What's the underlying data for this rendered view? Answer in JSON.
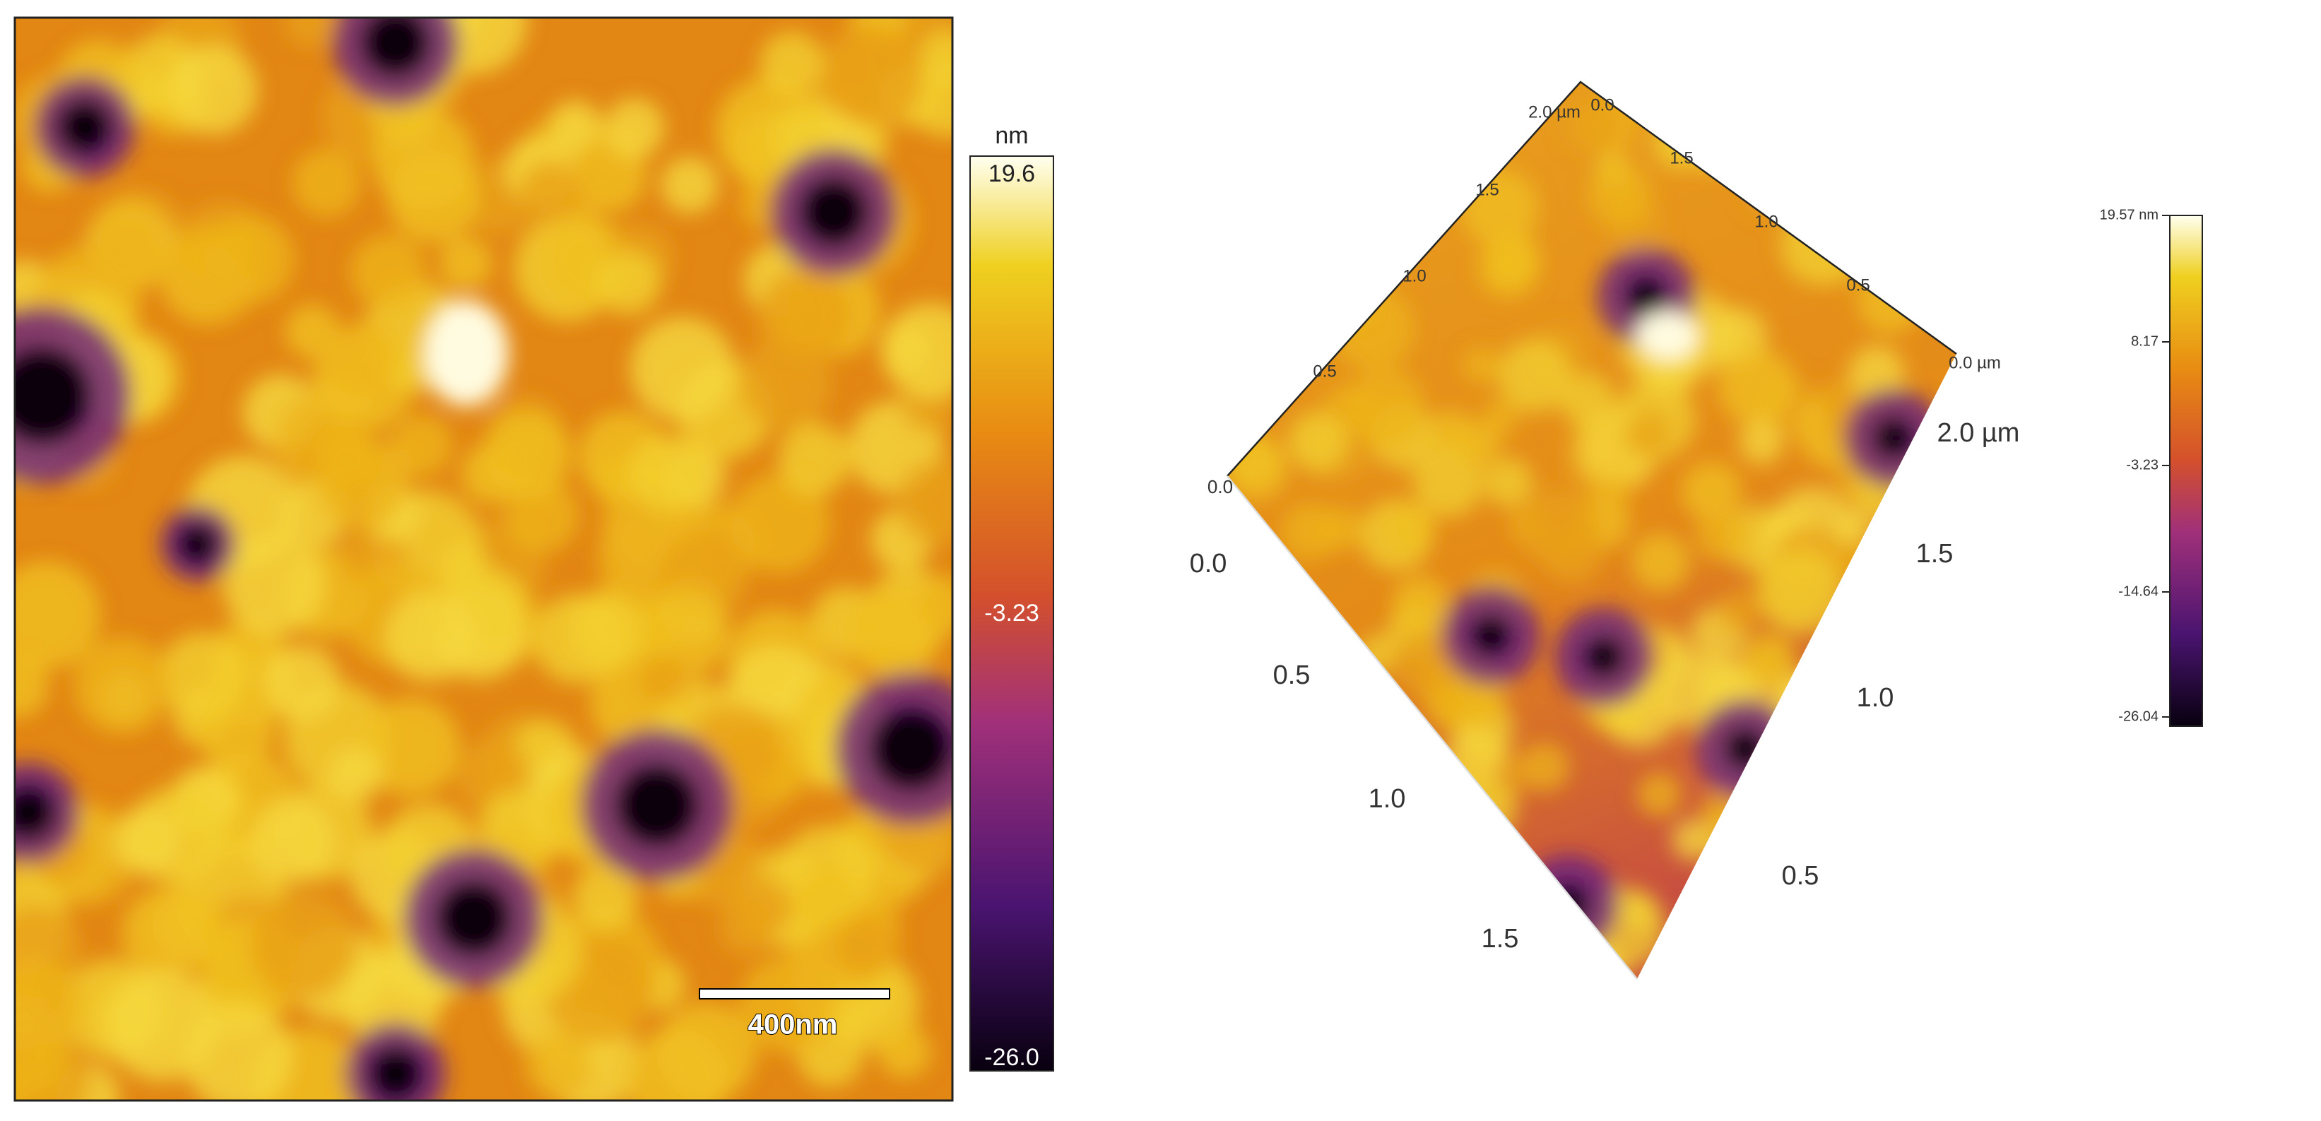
{
  "left_panel": {
    "colorbar": {
      "unit": "nm",
      "max": "19.6",
      "mid": "-3.23",
      "min": "-26.0"
    },
    "scale_bar": "400nm"
  },
  "right_panel": {
    "corner_label": "0.0",
    "front_left_axis": [
      "0.0",
      "0.5",
      "1.0",
      "1.5"
    ],
    "front_right_axis": [
      "0.5",
      "1.0",
      "1.5",
      "2.0 µm"
    ],
    "back_left_axis": [
      "0.5",
      "1.0",
      "1.5",
      "2.0 µm"
    ],
    "back_right_axis": [
      "0.0",
      "1.5",
      "1.0",
      "0.5",
      "0.0 µm"
    ],
    "colorbar": [
      "19.57 nm",
      "8.17",
      "-3.23",
      "-14.64",
      "-26.04"
    ]
  }
}
